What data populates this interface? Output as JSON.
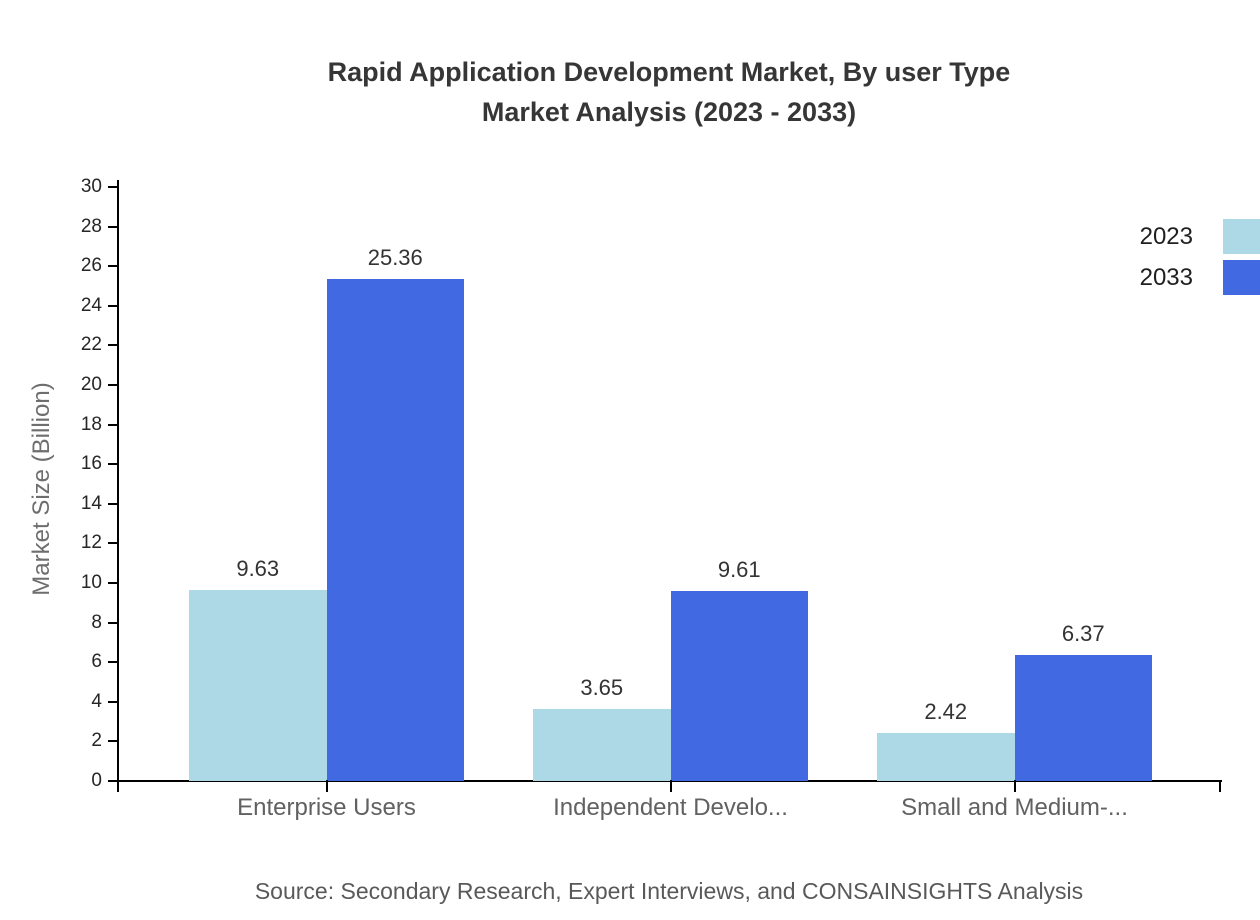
{
  "chart_data": {
    "type": "bar",
    "title": "Rapid Application Development Market, By user Type",
    "subtitle": "Market Analysis (2023 - 2033)",
    "categories": [
      "Enterprise Users",
      "Independent Develo...",
      "Small and Medium-..."
    ],
    "series": [
      {
        "name": "2023",
        "color": "#ADD8E6",
        "values": [
          9.63,
          3.65,
          2.42
        ]
      },
      {
        "name": "2033",
        "color": "#4169E1",
        "values": [
          25.36,
          9.61,
          6.37
        ]
      }
    ],
    "xlabel": "",
    "ylabel": "Market Size (Billion)",
    "ylim": [
      0,
      30
    ],
    "ytick_step": 2,
    "grid": false,
    "show_value_labels": true,
    "legend_position": "top-right",
    "axis_color": "#000000",
    "title_color": "#363636",
    "source": "Source: Secondary Research, Expert Interviews, and CONSAINSIGHTS Analysis"
  }
}
